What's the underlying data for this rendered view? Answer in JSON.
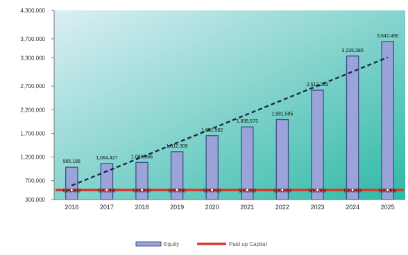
{
  "chart_data": {
    "type": "bar",
    "title": "",
    "xlabel": "",
    "ylabel": "",
    "categories": [
      "2016",
      "2017",
      "2018",
      "2019",
      "2020",
      "2021",
      "2022",
      "2023",
      "2024",
      "2025"
    ],
    "ylim": [
      300000,
      4300000
    ],
    "yticks": [
      300000,
      700000,
      1200000,
      1700000,
      2200000,
      2700000,
      3300000,
      3700000,
      4300000
    ],
    "ytick_labels": [
      "300,000",
      "700,000",
      "1,200,000",
      "1,700,000",
      "2,200,000",
      "2,700,000",
      "3,300,000",
      "3,700,000",
      "4,300,000"
    ],
    "series": [
      {
        "name": "Equity",
        "kind": "bar",
        "color": "#9aa4d8",
        "values": [
          985185,
          1064427,
          1086866,
          1312309,
          1651582,
          1835573,
          1991595,
          2613233,
          3335380,
          3642490
        ],
        "labels": [
          "985,185",
          "1,064,427",
          "1,086,866",
          "1,312,309",
          "1,651,582",
          "1,835,573",
          "1,991,595",
          "2,613,233",
          "3,335,380",
          "3,642,490"
        ]
      },
      {
        "name": "Paid up Capital",
        "kind": "line",
        "color": "#d43a2f",
        "values": [
          500000,
          500000,
          500000,
          500000,
          500000,
          500000,
          500000,
          500000,
          500000,
          500000
        ],
        "labels": [
          "500,000",
          "500,000",
          "500,000",
          "500,000",
          "500,000",
          "500,000",
          "500,000",
          "500,000",
          "500,000",
          "500,000"
        ]
      }
    ],
    "trendline": {
      "series": "Equity",
      "style": "dashed",
      "color": "#1a2a4a"
    },
    "plot_background": {
      "from": "#dbeff5",
      "to": "#2fb9a6"
    },
    "grid": false,
    "legend": "bottom-center"
  }
}
